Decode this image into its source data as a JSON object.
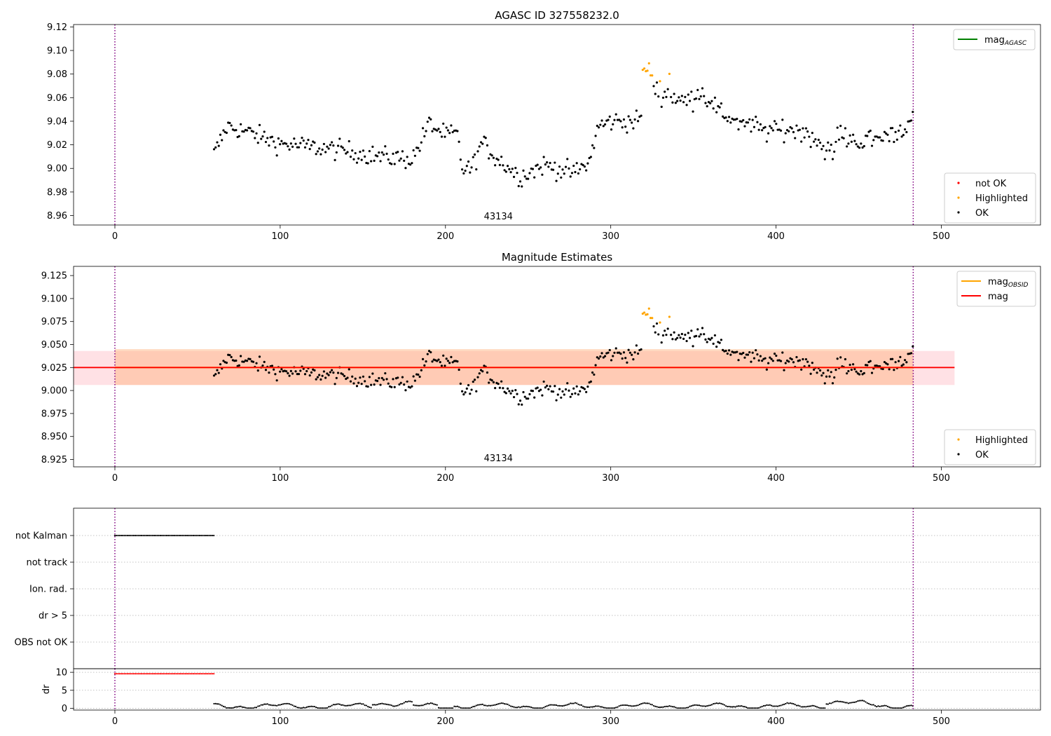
{
  "chart_data": [
    {
      "type": "scatter",
      "title": "AGASC ID 327558232.0",
      "xlim": [
        -25,
        560
      ],
      "ylim": [
        8.952,
        9.122
      ],
      "xticks": [
        0,
        100,
        200,
        300,
        400,
        500
      ],
      "yticks": [
        8.96,
        8.98,
        9.0,
        9.02,
        9.04,
        9.06,
        9.08,
        9.1,
        9.12
      ],
      "ytick_decimals": 2,
      "vlines": [
        0,
        483
      ],
      "annotation": "43134",
      "annotation_x": 232,
      "legend_lines": [
        {
          "label": "mag",
          "sub": "AGASC",
          "color": "#008000"
        }
      ],
      "legend_points": [
        {
          "label": "not OK",
          "color": "#ff0000"
        },
        {
          "label": "Highlighted",
          "color": "#ffa500"
        },
        {
          "label": "OK",
          "color": "#000000"
        }
      ],
      "grid": false
    },
    {
      "type": "scatter",
      "title": "Magnitude Estimates",
      "xlim": [
        -25,
        560
      ],
      "ylim": [
        8.917,
        9.135
      ],
      "xticks": [
        0,
        100,
        200,
        300,
        400,
        500
      ],
      "yticks": [
        8.925,
        8.95,
        8.975,
        9.0,
        9.025,
        9.05,
        9.075,
        9.1,
        9.125
      ],
      "ytick_decimals": 3,
      "vlines": [
        0,
        483
      ],
      "annotation": "43134",
      "annotation_x": 232,
      "mag": 9.025,
      "mag_obsid": 9.025,
      "band_obsid": [
        9.006,
        9.045
      ],
      "band_mag": [
        9.006,
        9.043
      ],
      "band_obsid_x": [
        0,
        483
      ],
      "band_mag_x": [
        -25,
        508
      ],
      "legend_lines": [
        {
          "label": "mag",
          "sub": "OBSID",
          "color": "#ffa500"
        },
        {
          "label": "mag",
          "sub": "",
          "color": "#ff0000"
        }
      ],
      "legend_points": [
        {
          "label": "Highlighted",
          "color": "#ffa500"
        },
        {
          "label": "OK",
          "color": "#000000"
        }
      ],
      "grid": false
    },
    {
      "type": "scatter",
      "title": "",
      "xlim": [
        -25,
        560
      ],
      "flag_categories": [
        "not Kalman",
        "not track",
        "Ion. rad.",
        "dr > 5",
        "OBS not OK"
      ],
      "flag_not_kalman_range": [
        0,
        60
      ],
      "vlines": [
        0,
        483
      ],
      "grid": true
    },
    {
      "type": "line",
      "title": "",
      "ylabel": "dr",
      "xlim": [
        -25,
        560
      ],
      "ylim": [
        -0.5,
        11
      ],
      "xticks": [
        0,
        100,
        200,
        300,
        400,
        500
      ],
      "yticks": [
        0,
        5,
        10
      ],
      "dr_high_range": [
        0,
        60
      ],
      "dr_high_value": 9.6,
      "vlines": [
        0,
        483
      ],
      "grid": true
    }
  ]
}
